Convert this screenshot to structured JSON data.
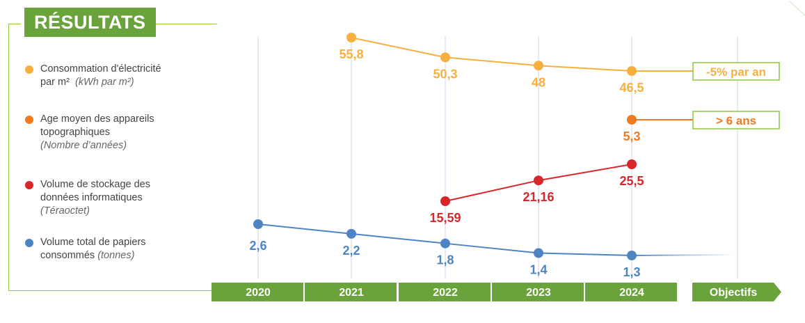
{
  "header": {
    "title": "RÉSULTATS"
  },
  "legend": [
    {
      "label": "Consommation d'électricité",
      "label2": "par m²",
      "unit": "(kWh par m²)",
      "color": "#f7b040"
    },
    {
      "label": "Age moyen des appareils",
      "label2": "topographiques",
      "unit": "(Nombre d’années)",
      "color": "#ef7a22"
    },
    {
      "label": "Volume de stockage des",
      "label2": "données informatiques",
      "unit": "(Téraoctet)",
      "color": "#d8262b"
    },
    {
      "label": "Volume total de papiers",
      "label2": "consommés",
      "unit": "(tonnes)",
      "color": "#4f84c4"
    }
  ],
  "colors": {
    "green": "#6aa33b",
    "green_light": "#8dc63f",
    "grid": "#c9d6ec"
  },
  "chart_data": {
    "type": "line",
    "categories": [
      "2020",
      "2021",
      "2022",
      "2023",
      "2024",
      "Objectifs"
    ],
    "series": [
      {
        "key": "elec",
        "x": [
          "2021",
          "2022",
          "2023",
          "2024"
        ],
        "values": [
          55.8,
          50.3,
          48,
          46.5
        ],
        "labels": [
          "55,8",
          "50,3",
          "48",
          "46,5"
        ],
        "color": "#f7b040",
        "target": "-5% par an"
      },
      {
        "key": "age",
        "x": [
          "2024"
        ],
        "values": [
          5.3
        ],
        "labels": [
          "5,3"
        ],
        "color": "#ef7a22",
        "target": "> 6 ans"
      },
      {
        "key": "storage",
        "x": [
          "2022",
          "2023",
          "2024"
        ],
        "values": [
          15.59,
          21.16,
          25.5
        ],
        "labels": [
          "15,59",
          "21,16",
          "25,5"
        ],
        "color": "#d8262b"
      },
      {
        "key": "paper",
        "x": [
          "2020",
          "2021",
          "2022",
          "2023",
          "2024"
        ],
        "values": [
          2.6,
          2.2,
          1.8,
          1.4,
          1.3
        ],
        "labels": [
          "2,6",
          "2,2",
          "1,8",
          "1,4",
          "1,3"
        ],
        "color": "#4f84c4"
      }
    ]
  }
}
